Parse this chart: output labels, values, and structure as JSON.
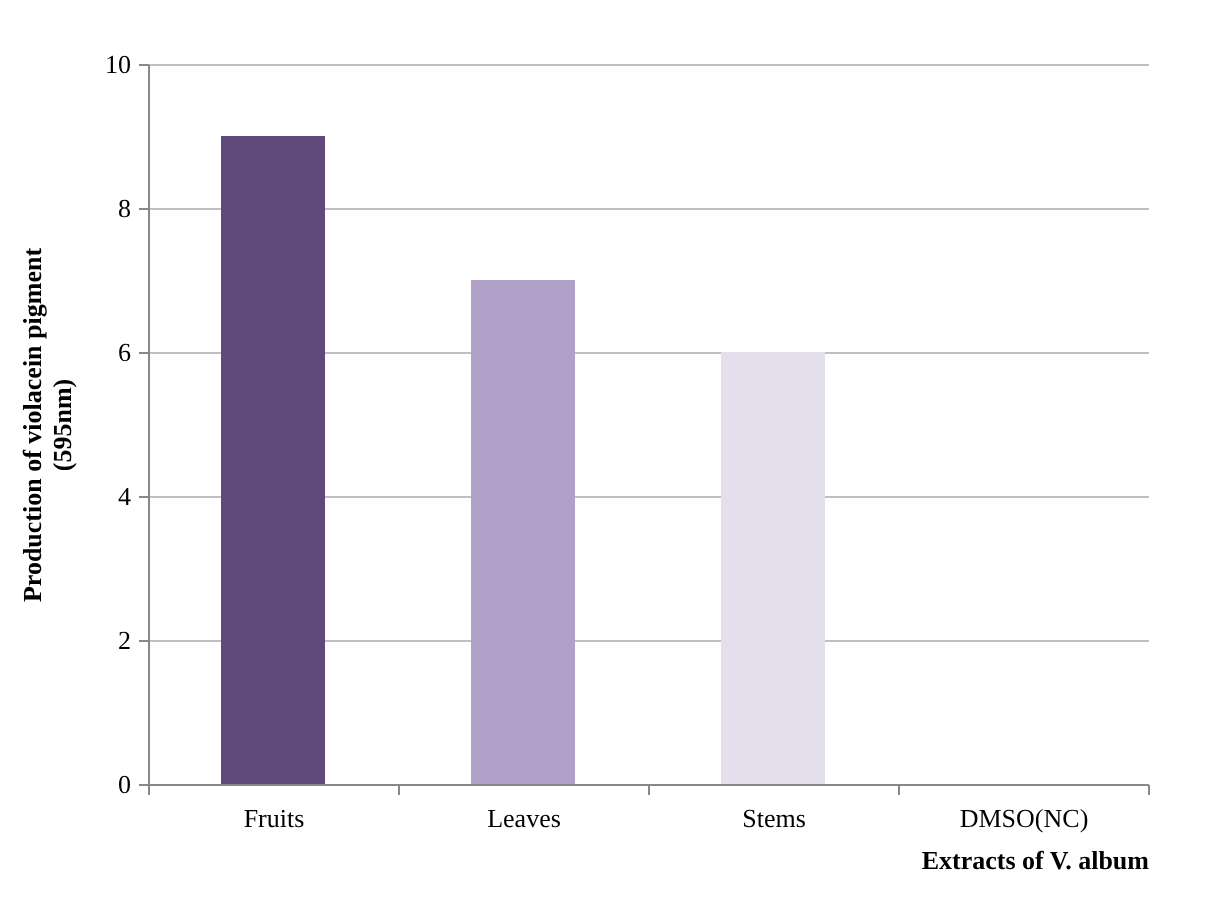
{
  "chart_data": {
    "type": "bar",
    "xlabel": "Extracts of V. album",
    "ylabel": "Production of violacein pigment\n(595nm)",
    "categories": [
      "Fruits",
      "Leaves",
      "Stems",
      "DMSO(NC)"
    ],
    "values": [
      9,
      7,
      6,
      0
    ],
    "colors": [
      "#604a7b",
      "#b1a0c7",
      "#e4dfec",
      "#d9d9d9"
    ],
    "ylim": [
      0,
      10
    ],
    "yticks": [
      0,
      2,
      4,
      6,
      8,
      10
    ],
    "grid": "y"
  }
}
